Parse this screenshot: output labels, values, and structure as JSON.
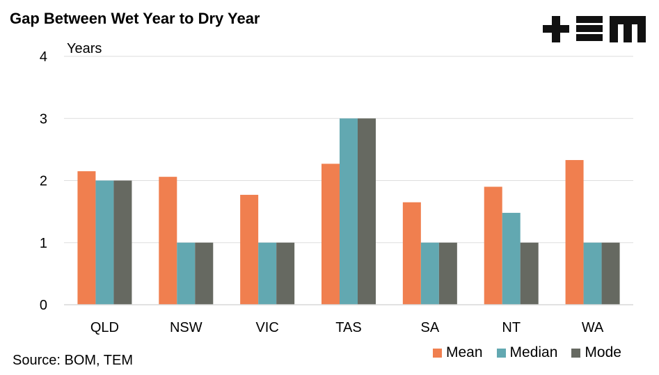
{
  "title": "Gap Between Wet Year to Dry Year",
  "source": "Source: BOM, TEM",
  "logo_text": "+EM",
  "chart_data": {
    "type": "bar",
    "categories": [
      "QLD",
      "NSW",
      "VIC",
      "TAS",
      "SA",
      "NT",
      "WA"
    ],
    "series": [
      {
        "name": "Mean",
        "color": "#F07F4F",
        "values": [
          2.15,
          2.06,
          1.77,
          2.27,
          1.65,
          1.9,
          2.33
        ]
      },
      {
        "name": "Median",
        "color": "#62A8B1",
        "values": [
          2,
          1,
          1,
          3,
          1,
          1.48,
          1
        ]
      },
      {
        "name": "Mode",
        "color": "#666961",
        "values": [
          2,
          1,
          1,
          3,
          1,
          1,
          1
        ]
      }
    ],
    "ylabel": "Years",
    "ylim": [
      0,
      4
    ],
    "yticks": [
      "0",
      "1",
      "2",
      "3",
      "4"
    ],
    "grid": true,
    "legend_position": "bottom-right"
  }
}
